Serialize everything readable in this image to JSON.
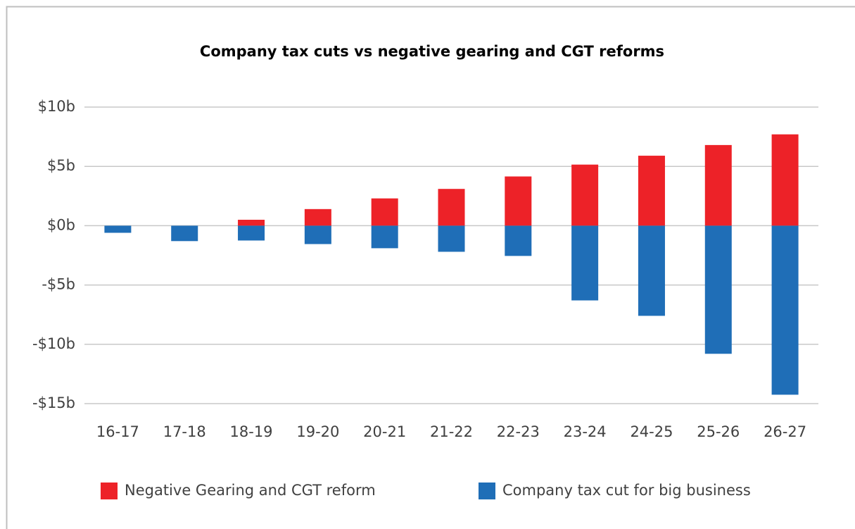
{
  "chart_data": {
    "type": "bar",
    "stacked": true,
    "title": "Company tax cuts vs negative gearing and CGT reforms",
    "categories": [
      "16-17",
      "17-18",
      "18-19",
      "19-20",
      "20-21",
      "21-22",
      "22-23",
      "23-24",
      "24-25",
      "25-26",
      "26-27"
    ],
    "series": [
      {
        "name": "Negative Gearing and CGT reform",
        "color": "#ed2228",
        "values": [
          0,
          0,
          0.5,
          1.4,
          2.3,
          3.1,
          4.15,
          5.15,
          5.9,
          6.8,
          7.7
        ]
      },
      {
        "name": "Company tax cut for big business",
        "color": "#1f6eb7",
        "values": [
          -0.6,
          -1.3,
          -1.25,
          -1.55,
          -1.9,
          -2.2,
          -2.55,
          -6.3,
          -7.6,
          -10.8,
          -14.25
        ]
      }
    ],
    "ylim": [
      -15,
      10
    ],
    "yticks": [
      {
        "value": 10,
        "label": "$10b"
      },
      {
        "value": 5,
        "label": "$5b"
      },
      {
        "value": 0,
        "label": "$0b"
      },
      {
        "value": -5,
        "label": "-$5b"
      },
      {
        "value": -10,
        "label": "-$10b"
      },
      {
        "value": -15,
        "label": "-$15b"
      }
    ],
    "grid": true,
    "legend": "bottom"
  }
}
